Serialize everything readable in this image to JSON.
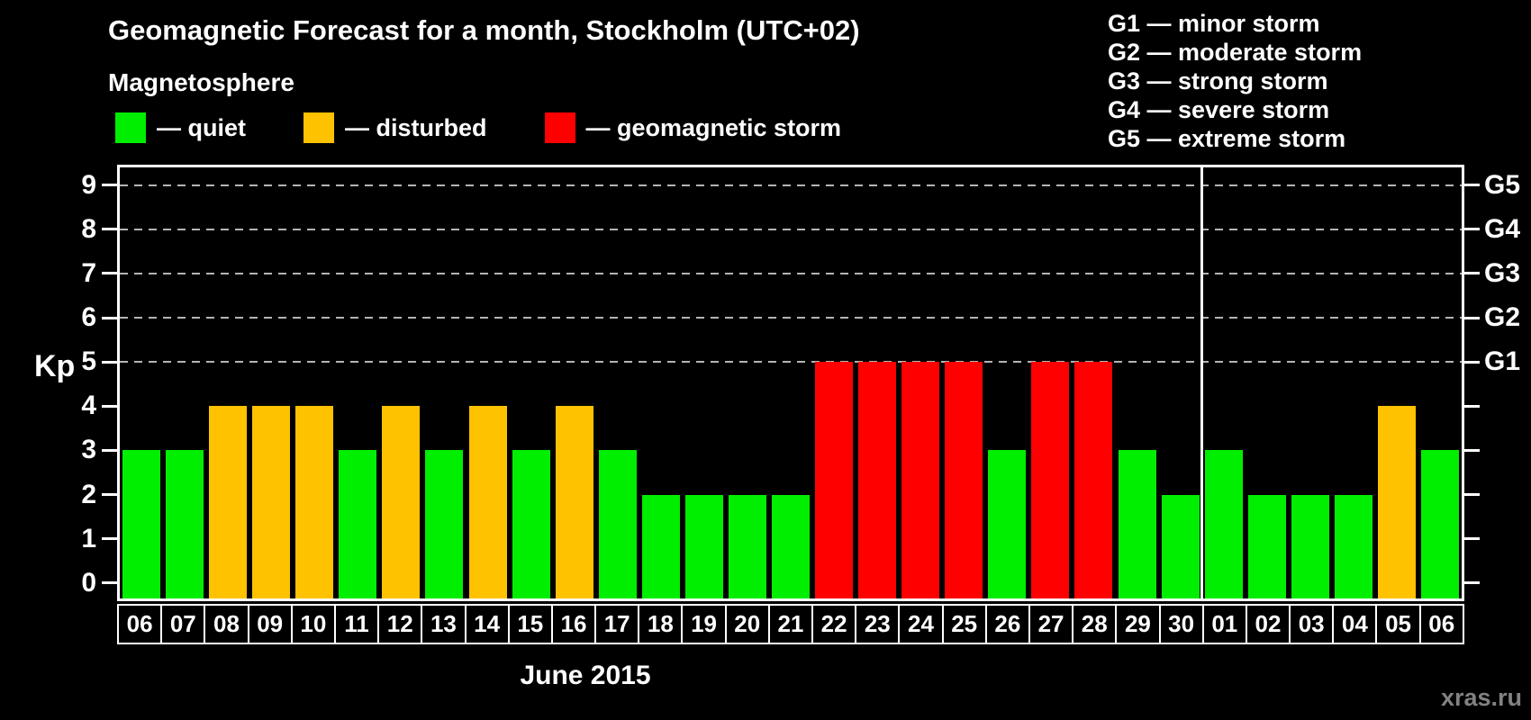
{
  "title": "Geomagnetic Forecast for a month, Stockholm (UTC+02)",
  "legend": {
    "heading": "Magnetosphere",
    "items": [
      {
        "key": "quiet",
        "label": "— quiet",
        "color": "#00ee00"
      },
      {
        "key": "disturbed",
        "label": "— disturbed",
        "color": "#ffc200"
      },
      {
        "key": "storm",
        "label": "— geomagnetic storm",
        "color": "#ff0000"
      }
    ]
  },
  "storm_scale_legend": [
    "G1 — minor storm",
    "G2 — moderate storm",
    "G3 — strong storm",
    "G4 — severe storm",
    "G5 — extreme storm"
  ],
  "watermark": "xras.ru",
  "chart_data": {
    "type": "bar",
    "title": "Geomagnetic Forecast for a month, Stockholm (UTC+02)",
    "xlabel": "June 2015",
    "ylabel": "Kp",
    "ylim": [
      -0.35,
      9.4
    ],
    "yticks": [
      0,
      1,
      2,
      3,
      4,
      5,
      6,
      7,
      8,
      9
    ],
    "gridlines_at": [
      5,
      6,
      7,
      8,
      9
    ],
    "grid_style": "dashed",
    "legend_position": "top",
    "right_axis_labels": [
      {
        "value": 5,
        "label": "G1"
      },
      {
        "value": 6,
        "label": "G2"
      },
      {
        "value": 7,
        "label": "G3"
      },
      {
        "value": 8,
        "label": "G4"
      },
      {
        "value": 9,
        "label": "G5"
      }
    ],
    "categories": [
      "06",
      "07",
      "08",
      "09",
      "10",
      "11",
      "12",
      "13",
      "14",
      "15",
      "16",
      "17",
      "18",
      "19",
      "20",
      "21",
      "22",
      "23",
      "24",
      "25",
      "26",
      "27",
      "28",
      "29",
      "30",
      "01",
      "02",
      "03",
      "04",
      "05",
      "06"
    ],
    "values": [
      3,
      3,
      4,
      4,
      4,
      3,
      4,
      3,
      4,
      3,
      4,
      3,
      2,
      2,
      2,
      2,
      5,
      5,
      5,
      5,
      3,
      5,
      5,
      3,
      2,
      3,
      2,
      2,
      2,
      4,
      3
    ],
    "statuses": [
      "quiet",
      "quiet",
      "disturbed",
      "disturbed",
      "disturbed",
      "quiet",
      "disturbed",
      "quiet",
      "disturbed",
      "quiet",
      "disturbed",
      "quiet",
      "quiet",
      "quiet",
      "quiet",
      "quiet",
      "storm",
      "storm",
      "storm",
      "storm",
      "quiet",
      "storm",
      "storm",
      "quiet",
      "quiet",
      "quiet",
      "quiet",
      "quiet",
      "quiet",
      "disturbed",
      "quiet"
    ],
    "month_separator_after_index": 24,
    "colors": {
      "quiet": "#00ee00",
      "disturbed": "#ffc200",
      "storm": "#ff0000"
    }
  }
}
